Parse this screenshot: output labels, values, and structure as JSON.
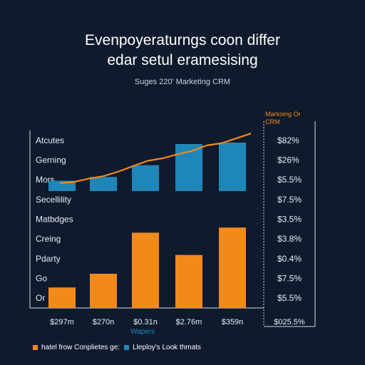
{
  "title_line1": "Evenpoyeraturngs coon differ",
  "title_line2": "edar setul eramesising",
  "subtitle": "Suges 220' Marketing CRM",
  "corner_label": [
    "Markoing Or",
    "CRM"
  ],
  "x_axis_label": "Wapers",
  "legend": [
    {
      "label": "hatel frow Conplietes ge:",
      "color": "#f28a1a"
    },
    {
      "label": "Lleploy's Look thmats",
      "color": "#1f87b8"
    }
  ],
  "chart_data": {
    "type": "bar",
    "categories": [
      "$297m",
      "$270n",
      "$0.31n",
      "$2.76m",
      "$359n"
    ],
    "row_labels": [
      "Atcutes",
      "Gerning",
      "Mors",
      "Secellility",
      "Matbdges",
      "Creing",
      "Pdarty",
      "Go",
      "Or"
    ],
    "right_labels": [
      "$82%",
      "$26%",
      "$5.5%",
      "$7.5%",
      "$3.5%",
      "$3.8%",
      "$0.4%",
      "$7.5%",
      "$5.5%"
    ],
    "bottom_right_label": "$025.5%",
    "series": [
      {
        "values": [
          1.2,
          2.0,
          4.4,
          3.1,
          4.7
        ],
        "color": "#f28a1a"
      },
      {
        "values": [
          2.2,
          3.0,
          5.5,
          10.0,
          13.2
        ],
        "color": "#1f87b8"
      }
    ],
    "line_series": {
      "values": [
        1.2,
        1.6,
        2.7,
        3.5,
        5.0,
        6.8,
        8.5,
        9.3,
        10.6,
        11.7,
        13.5,
        14.2,
        15.8,
        17.4
      ],
      "color": "#f28a1a"
    },
    "grid": false
  }
}
